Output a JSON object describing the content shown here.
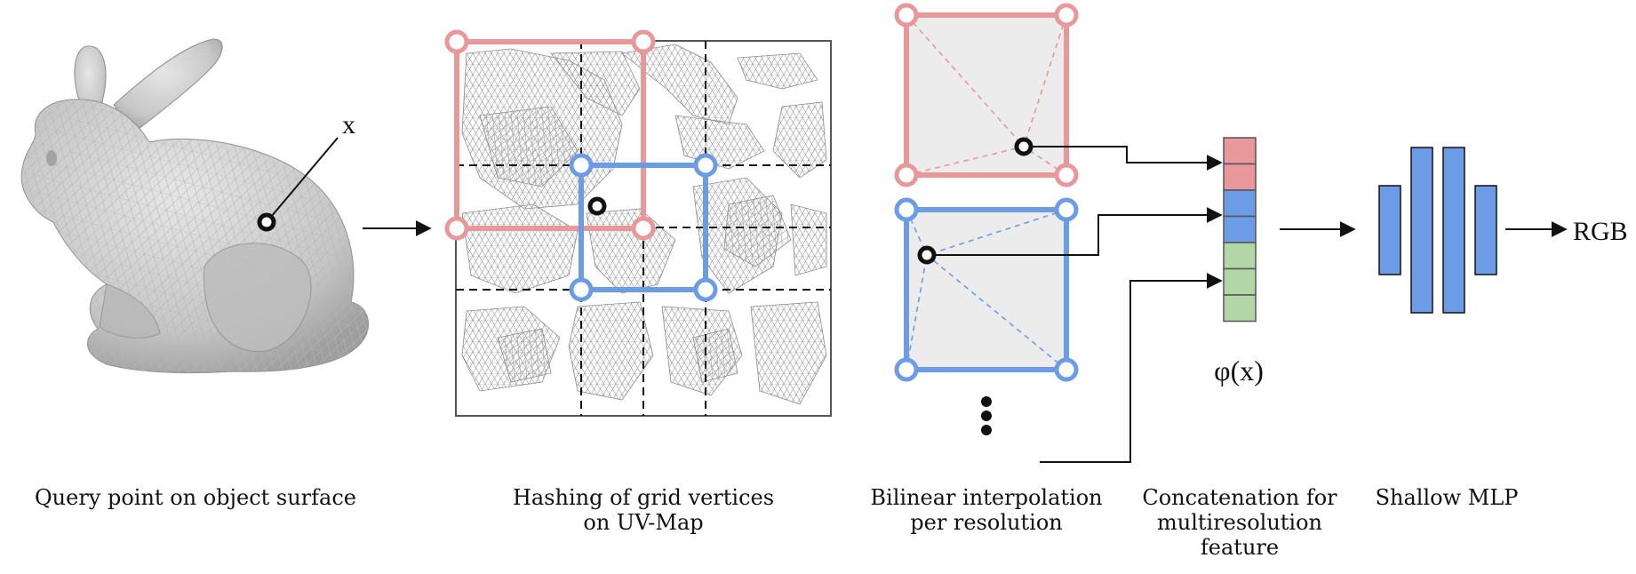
{
  "labels": {
    "query_point": "x",
    "feature": "φ(x)",
    "output": "RGB"
  },
  "captions": {
    "query": [
      "Query point on object surface"
    ],
    "hashing": [
      "Hashing of grid vertices",
      "on UV-Map"
    ],
    "bilinear": [
      "Bilinear interpolation",
      "per resolution"
    ],
    "concat": [
      "Concatenation for",
      "multiresolution",
      "feature"
    ],
    "mlp": [
      "Shallow MLP"
    ]
  },
  "colors": {
    "red_level": "#e8979b",
    "blue_level": "#6c9ce6",
    "green_feature": "#b3d6a6",
    "cell_fill": "#ececec",
    "mesh_gray": "#c8c8c8",
    "bunny_gray": "#c9c9c9"
  },
  "feature_vector": {
    "segments": [
      "red",
      "red",
      "blue",
      "blue",
      "green",
      "green",
      "green"
    ]
  },
  "mlp": {
    "layer_heights": [
      "short",
      "tall",
      "tall",
      "short"
    ]
  },
  "icons": [
    "bunny-mesh",
    "uv-map-mesh",
    "ellipsis-dots"
  ]
}
